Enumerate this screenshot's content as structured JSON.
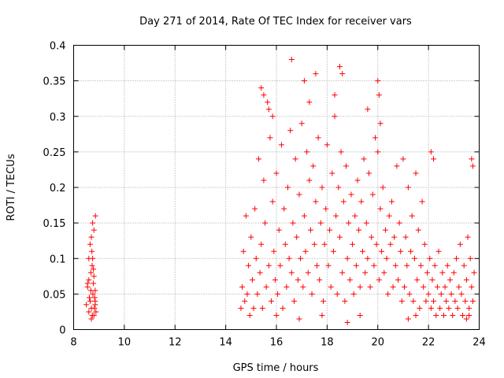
{
  "chart_data": {
    "type": "scatter",
    "title": "Day 271 of 2014, Rate Of TEC Index for receiver vars",
    "xlabel": "GPS time / hours",
    "ylabel": "ROTI / TECUs",
    "xlim": [
      8,
      24
    ],
    "ylim": [
      0,
      0.4
    ],
    "xticks": [
      8,
      10,
      12,
      14,
      16,
      18,
      20,
      22,
      24
    ],
    "xtick_labels": [
      "8",
      "10",
      "12",
      "14",
      "16",
      "18",
      "20",
      "22",
      "24"
    ],
    "yticks": [
      0,
      0.05,
      0.1,
      0.15,
      0.2,
      0.25,
      0.3,
      0.35,
      0.4
    ],
    "ytick_labels": [
      "0",
      "0.05",
      "0.1",
      "0.15",
      "0.2",
      "0.25",
      "0.3",
      "0.35",
      "0.4"
    ],
    "grid": true,
    "marker": "+",
    "color": "#ff0000",
    "series": [
      {
        "name": "ROTI",
        "x": [
          8.5,
          8.55,
          8.6,
          8.62,
          8.65,
          8.68,
          8.7,
          8.72,
          8.74,
          8.75,
          8.78,
          8.8,
          8.82,
          8.85,
          8.86,
          8.88,
          8.6,
          8.65,
          8.7,
          8.73,
          8.76,
          8.8,
          8.83,
          8.85,
          8.7,
          8.8,
          8.6,
          8.75,
          8.85,
          8.68,
          8.78,
          8.55,
          14.6,
          14.65,
          14.7,
          14.75,
          14.8,
          14.85,
          14.9,
          14.95,
          15.0,
          15.05,
          15.1,
          15.15,
          15.2,
          15.25,
          15.3,
          15.35,
          15.4,
          15.45,
          15.5,
          15.55,
          15.6,
          15.65,
          15.7,
          15.75,
          15.8,
          15.85,
          15.9,
          15.95,
          16.0,
          16.05,
          16.1,
          16.15,
          16.2,
          16.25,
          16.3,
          16.35,
          16.4,
          16.45,
          16.5,
          16.55,
          16.6,
          16.65,
          16.7,
          16.75,
          16.8,
          16.85,
          16.9,
          16.95,
          17.0,
          17.05,
          17.1,
          17.15,
          17.2,
          17.25,
          17.3,
          17.35,
          17.4,
          17.45,
          17.5,
          17.55,
          17.6,
          17.65,
          17.7,
          17.75,
          17.8,
          17.85,
          17.9,
          17.95,
          18.0,
          18.05,
          18.1,
          18.15,
          18.2,
          18.25,
          18.3,
          18.35,
          18.4,
          18.45,
          18.5,
          18.55,
          18.6,
          18.65,
          18.7,
          18.75,
          18.8,
          18.85,
          18.9,
          18.95,
          19.0,
          19.05,
          19.1,
          19.15,
          19.2,
          19.25,
          19.3,
          19.35,
          19.4,
          19.45,
          19.5,
          19.55,
          19.6,
          19.65,
          19.7,
          19.75,
          19.8,
          19.85,
          19.9,
          19.95,
          20.0,
          20.05,
          20.1,
          20.15,
          20.2,
          20.25,
          20.3,
          20.35,
          20.4,
          20.45,
          20.5,
          20.55,
          20.6,
          20.65,
          20.7,
          20.75,
          20.8,
          20.85,
          20.9,
          20.95,
          21.0,
          21.05,
          21.1,
          21.15,
          21.2,
          21.25,
          21.3,
          21.35,
          21.4,
          21.45,
          21.5,
          21.55,
          21.6,
          21.65,
          21.7,
          21.75,
          21.8,
          21.85,
          21.9,
          21.95,
          22.0,
          22.05,
          22.1,
          22.15,
          22.2,
          22.25,
          22.3,
          22.35,
          22.4,
          22.45,
          22.5,
          22.55,
          22.6,
          22.65,
          22.7,
          22.75,
          22.8,
          22.85,
          22.9,
          22.95,
          23.0,
          23.05,
          23.1,
          23.15,
          23.2,
          23.25,
          23.3,
          23.35,
          23.4,
          23.45,
          23.5,
          23.55,
          23.6,
          23.65,
          23.7,
          23.75,
          23.8,
          15.4,
          15.5,
          15.7,
          15.85,
          16.6,
          17.1,
          17.3,
          17.55,
          18.3,
          18.5,
          18.6,
          19.6,
          20.0,
          20.05,
          20.1,
          22.1,
          22.2,
          23.7,
          23.75,
          16.0,
          16.9,
          17.8,
          18.8,
          19.3,
          21.2,
          21.5,
          23.5,
          23.6
        ],
        "y": [
          0.035,
          0.06,
          0.1,
          0.045,
          0.12,
          0.08,
          0.03,
          0.11,
          0.02,
          0.15,
          0.065,
          0.14,
          0.03,
          0.055,
          0.16,
          0.025,
          0.07,
          0.04,
          0.13,
          0.09,
          0.05,
          0.02,
          0.045,
          0.035,
          0.015,
          0.075,
          0.025,
          0.1,
          0.04,
          0.055,
          0.085,
          0.065,
          0.03,
          0.06,
          0.11,
          0.04,
          0.16,
          0.05,
          0.09,
          0.02,
          0.13,
          0.07,
          0.03,
          0.17,
          0.1,
          0.05,
          0.24,
          0.08,
          0.12,
          0.03,
          0.21,
          0.15,
          0.06,
          0.32,
          0.09,
          0.27,
          0.04,
          0.18,
          0.11,
          0.07,
          0.22,
          0.05,
          0.14,
          0.09,
          0.26,
          0.03,
          0.17,
          0.12,
          0.06,
          0.2,
          0.1,
          0.28,
          0.08,
          0.15,
          0.04,
          0.24,
          0.13,
          0.07,
          0.19,
          0.1,
          0.29,
          0.06,
          0.16,
          0.11,
          0.25,
          0.08,
          0.21,
          0.14,
          0.05,
          0.23,
          0.12,
          0.18,
          0.09,
          0.27,
          0.07,
          0.15,
          0.2,
          0.04,
          0.12,
          0.17,
          0.26,
          0.09,
          0.14,
          0.06,
          0.22,
          0.11,
          0.3,
          0.16,
          0.05,
          0.2,
          0.13,
          0.25,
          0.08,
          0.18,
          0.04,
          0.23,
          0.1,
          0.15,
          0.07,
          0.19,
          0.12,
          0.05,
          0.16,
          0.09,
          0.21,
          0.14,
          0.06,
          0.18,
          0.11,
          0.24,
          0.08,
          0.15,
          0.1,
          0.22,
          0.06,
          0.13,
          0.19,
          0.09,
          0.27,
          0.12,
          0.25,
          0.07,
          0.17,
          0.11,
          0.2,
          0.08,
          0.14,
          0.1,
          0.05,
          0.16,
          0.12,
          0.18,
          0.06,
          0.13,
          0.09,
          0.23,
          0.07,
          0.15,
          0.11,
          0.04,
          0.24,
          0.06,
          0.13,
          0.09,
          0.2,
          0.05,
          0.11,
          0.16,
          0.04,
          0.1,
          0.22,
          0.07,
          0.14,
          0.03,
          0.09,
          0.18,
          0.06,
          0.12,
          0.04,
          0.08,
          0.05,
          0.1,
          0.03,
          0.07,
          0.04,
          0.09,
          0.02,
          0.06,
          0.11,
          0.03,
          0.05,
          0.08,
          0.02,
          0.06,
          0.04,
          0.09,
          0.03,
          0.07,
          0.05,
          0.02,
          0.08,
          0.04,
          0.1,
          0.03,
          0.06,
          0.12,
          0.05,
          0.02,
          0.09,
          0.04,
          0.07,
          0.13,
          0.03,
          0.1,
          0.06,
          0.04,
          0.08,
          0.34,
          0.33,
          0.31,
          0.3,
          0.38,
          0.35,
          0.32,
          0.36,
          0.33,
          0.37,
          0.36,
          0.31,
          0.35,
          0.33,
          0.29,
          0.25,
          0.24,
          0.24,
          0.23,
          0.02,
          0.015,
          0.02,
          0.01,
          0.02,
          0.015,
          0.02,
          0.015,
          0.02
        ]
      }
    ]
  }
}
